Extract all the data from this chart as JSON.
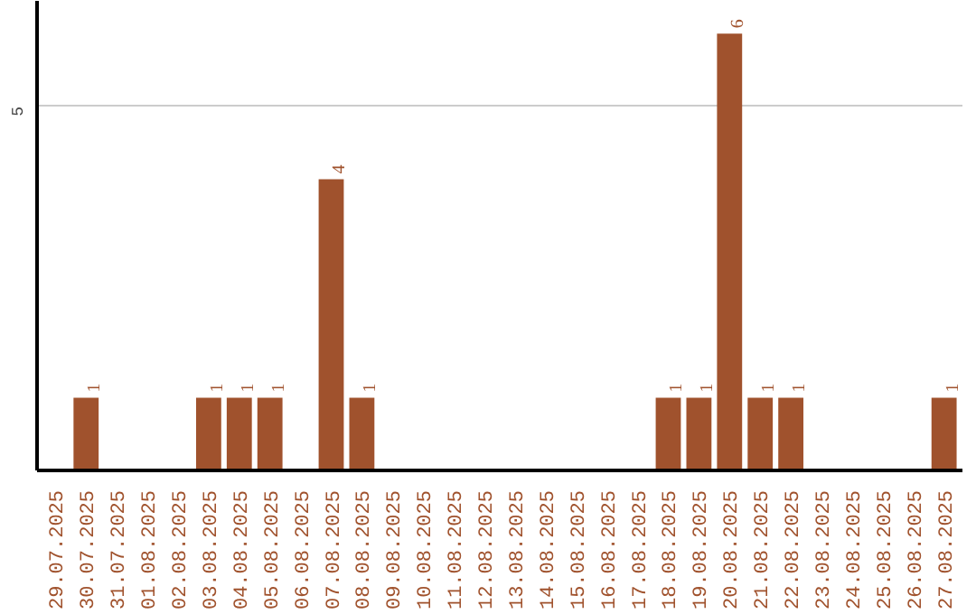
{
  "chart_data": {
    "type": "bar",
    "categories": [
      "29.07.2025",
      "30.07.2025",
      "31.07.2025",
      "01.08.2025",
      "02.08.2025",
      "03.08.2025",
      "04.08.2025",
      "05.08.2025",
      "06.08.2025",
      "07.08.2025",
      "08.08.2025",
      "09.08.2025",
      "10.08.2025",
      "11.08.2025",
      "12.08.2025",
      "13.08.2025",
      "14.08.2025",
      "15.08.2025",
      "16.08.2025",
      "17.08.2025",
      "18.08.2025",
      "19.08.2025",
      "20.08.2025",
      "21.08.2025",
      "22.08.2025",
      "23.08.2025",
      "24.08.2025",
      "25.08.2025",
      "26.08.2025",
      "27.08.2025"
    ],
    "values": [
      0,
      1,
      0,
      0,
      0,
      1,
      1,
      1,
      0,
      4,
      1,
      0,
      0,
      0,
      0,
      0,
      0,
      0,
      0,
      0,
      1,
      1,
      6,
      1,
      1,
      0,
      0,
      0,
      0,
      1
    ],
    "value_labels": [
      null,
      "1",
      null,
      null,
      null,
      "1",
      "1",
      "1",
      null,
      "4",
      "1",
      null,
      null,
      null,
      null,
      null,
      null,
      null,
      null,
      null,
      "1",
      "1",
      "6",
      "1",
      "1",
      null,
      null,
      null,
      null,
      "1"
    ],
    "color": "#a0522d",
    "ylim": [
      0,
      6.45
    ],
    "yticks": [
      5
    ],
    "grid": "y"
  }
}
